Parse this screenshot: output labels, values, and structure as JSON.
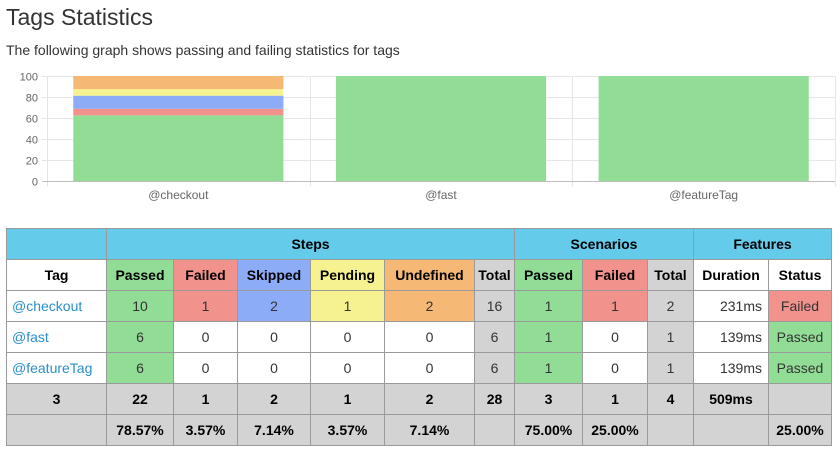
{
  "page": {
    "title": "Tags Statistics",
    "subtitle": "The following graph shows passing and failing statistics for tags"
  },
  "colors": {
    "passed": "#92dd96",
    "failed": "#f2928c",
    "skipped": "#8dacf7",
    "pending": "#f5f28f",
    "undefined": "#f5b975",
    "total": "#d3d3d3",
    "header": "#65cbea",
    "link": "#2a8fc8"
  },
  "chart_data": {
    "type": "bar",
    "stacked": true,
    "categories": [
      "@checkout",
      "@fast",
      "@featureTag"
    ],
    "series": [
      {
        "key": "passed",
        "values": [
          62.5,
          100,
          100
        ]
      },
      {
        "key": "failed",
        "values": [
          6.25,
          0,
          0
        ]
      },
      {
        "key": "skipped",
        "values": [
          12.5,
          0,
          0
        ]
      },
      {
        "key": "pending",
        "values": [
          6.25,
          0,
          0
        ]
      },
      {
        "key": "undefined",
        "values": [
          12.5,
          0,
          0
        ]
      }
    ],
    "ylim": [
      0,
      100
    ],
    "yticks": [
      "0",
      "20",
      "40",
      "60",
      "80",
      "100"
    ],
    "grid": true
  },
  "table": {
    "group_headers": {
      "steps": "Steps",
      "scenarios": "Scenarios",
      "features": "Features"
    },
    "col_headers": {
      "tag": "Tag",
      "steps_passed": "Passed",
      "steps_failed": "Failed",
      "steps_skipped": "Skipped",
      "steps_pending": "Pending",
      "steps_undefined": "Undefined",
      "steps_total": "Total",
      "sc_passed": "Passed",
      "sc_failed": "Failed",
      "sc_total": "Total",
      "duration": "Duration",
      "status": "Status"
    },
    "rows": [
      {
        "tag": "@checkout",
        "passed": "10",
        "failed": "1",
        "skipped": "2",
        "pending": "1",
        "undefined": "2",
        "total": "16",
        "sc_passed": "1",
        "sc_failed": "1",
        "sc_total": "2",
        "duration": "231ms",
        "status": "Failed"
      },
      {
        "tag": "@fast",
        "passed": "6",
        "failed": "0",
        "skipped": "0",
        "pending": "0",
        "undefined": "0",
        "total": "6",
        "sc_passed": "1",
        "sc_failed": "0",
        "sc_total": "1",
        "duration": "139ms",
        "status": "Passed"
      },
      {
        "tag": "@featureTag",
        "passed": "6",
        "failed": "0",
        "skipped": "0",
        "pending": "0",
        "undefined": "0",
        "total": "6",
        "sc_passed": "1",
        "sc_failed": "0",
        "sc_total": "1",
        "duration": "139ms",
        "status": "Passed"
      }
    ],
    "totals": {
      "tag": "3",
      "passed": "22",
      "failed": "1",
      "skipped": "2",
      "pending": "1",
      "undefined": "2",
      "total": "28",
      "sc_passed": "3",
      "sc_failed": "1",
      "sc_total": "4",
      "duration": "509ms",
      "status": ""
    },
    "percentages": {
      "tag": "",
      "passed": "78.57%",
      "failed": "3.57%",
      "skipped": "7.14%",
      "pending": "3.57%",
      "undefined": "7.14%",
      "total": "",
      "sc_passed": "75.00%",
      "sc_failed": "25.00%",
      "sc_total": "",
      "duration": "",
      "status": "25.00%"
    }
  }
}
